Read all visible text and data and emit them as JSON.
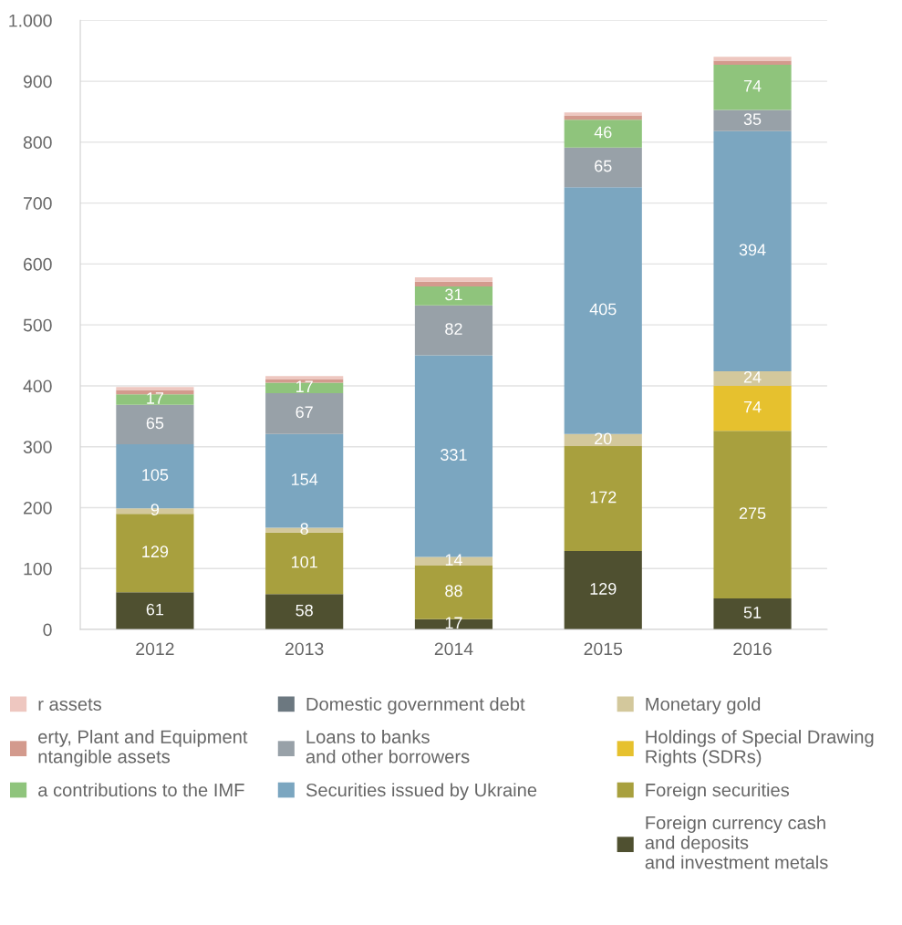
{
  "chart_data": {
    "type": "bar",
    "stacked": true,
    "categories": [
      "2012",
      "2013",
      "2014",
      "2015",
      "2016"
    ],
    "ylim": [
      0,
      1000
    ],
    "yticks": [
      0,
      100,
      200,
      300,
      400,
      500,
      600,
      700,
      800,
      900,
      {
        "value": 1000,
        "label": "1.000"
      }
    ],
    "grid": "y",
    "legend": "bottom",
    "series": [
      {
        "name": "Foreign currency cash\nand deposits\nand investment metals",
        "color": "#4f5030",
        "values": [
          61,
          58,
          17,
          129,
          51
        ],
        "value_labels": [
          "61",
          "58",
          "17",
          "129",
          "51"
        ]
      },
      {
        "name": "Foreign securities",
        "color": "#a8a03e",
        "values": [
          129,
          101,
          88,
          172,
          275
        ],
        "value_labels": [
          "129",
          "101",
          "88",
          "172",
          "275"
        ]
      },
      {
        "name": "Holdings of Special Drawing\nRights (SDRs)",
        "color": "#e6c12e",
        "values": [
          null,
          null,
          null,
          null,
          74
        ],
        "value_labels": [
          null,
          null,
          null,
          null,
          "74"
        ]
      },
      {
        "name": "Monetary gold",
        "color": "#d3c89c",
        "values": [
          9,
          8,
          14,
          20,
          24
        ],
        "value_labels": [
          "9",
          "8",
          "14",
          "20",
          "24"
        ]
      },
      {
        "name": "Securities issued by Ukraine",
        "color": "#7ba6c0",
        "values": [
          105,
          154,
          331,
          405,
          394
        ],
        "value_labels": [
          "105",
          "154",
          "331",
          "405",
          "394"
        ]
      },
      {
        "name": "Loans to banks\nand other borrowers",
        "color": "#98a1a8",
        "values": [
          65,
          67,
          82,
          65,
          35
        ],
        "value_labels": [
          "65",
          "67",
          "82",
          "65",
          "35"
        ]
      },
      {
        "name": "Domestic government debt",
        "color": "#6c7880",
        "values": [
          null,
          null,
          null,
          null,
          null
        ]
      },
      {
        "name": "a contributions to the IMF",
        "color": "#8fc47c",
        "values": [
          17,
          17,
          31,
          46,
          74
        ],
        "value_labels": [
          "17",
          "17",
          "31",
          "46",
          "74"
        ]
      },
      {
        "name": "erty, Plant and Equipment\nntangible assets",
        "color": "#d39a8d",
        "values": [
          7,
          6,
          8,
          7,
          7
        ]
      },
      {
        "name": "r assets",
        "color": "#eec7c0",
        "values": [
          5,
          5,
          7,
          5,
          6
        ]
      }
    ]
  }
}
